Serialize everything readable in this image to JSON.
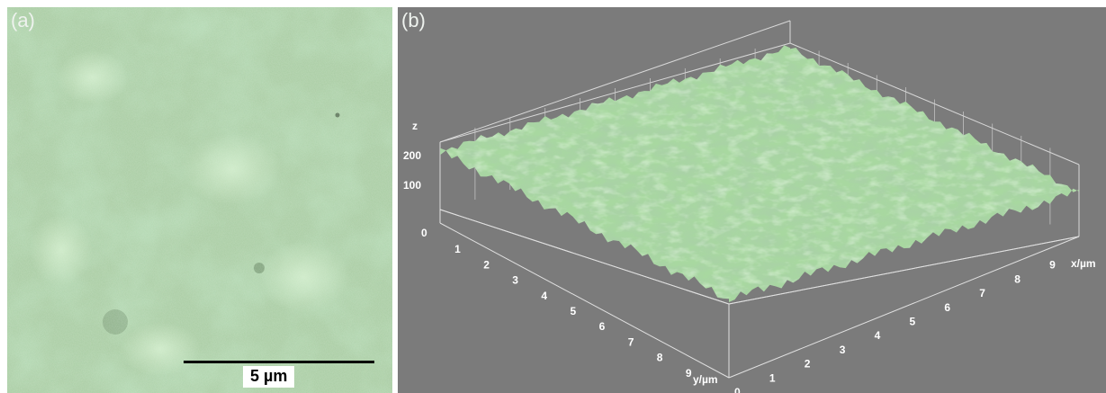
{
  "panel_a": {
    "label": "(a)",
    "scalebar_label": "5 µm"
  },
  "panel_b": {
    "label": "(b)",
    "z_label": "z",
    "z_ticks": [
      "200",
      "100",
      "0"
    ],
    "x_label": "x/µm",
    "x_ticks": [
      "0",
      "1",
      "2",
      "3",
      "4",
      "5",
      "6",
      "7",
      "8",
      "9"
    ],
    "y_label": "y/µm",
    "y_ticks": [
      "1",
      "2",
      "3",
      "4",
      "5",
      "6",
      "7",
      "8",
      "9"
    ],
    "colors": {
      "background": "#7b7b7b",
      "surface": "#a8d8a0",
      "image": "#a9cca3",
      "grid": "#d8d8d8"
    }
  }
}
